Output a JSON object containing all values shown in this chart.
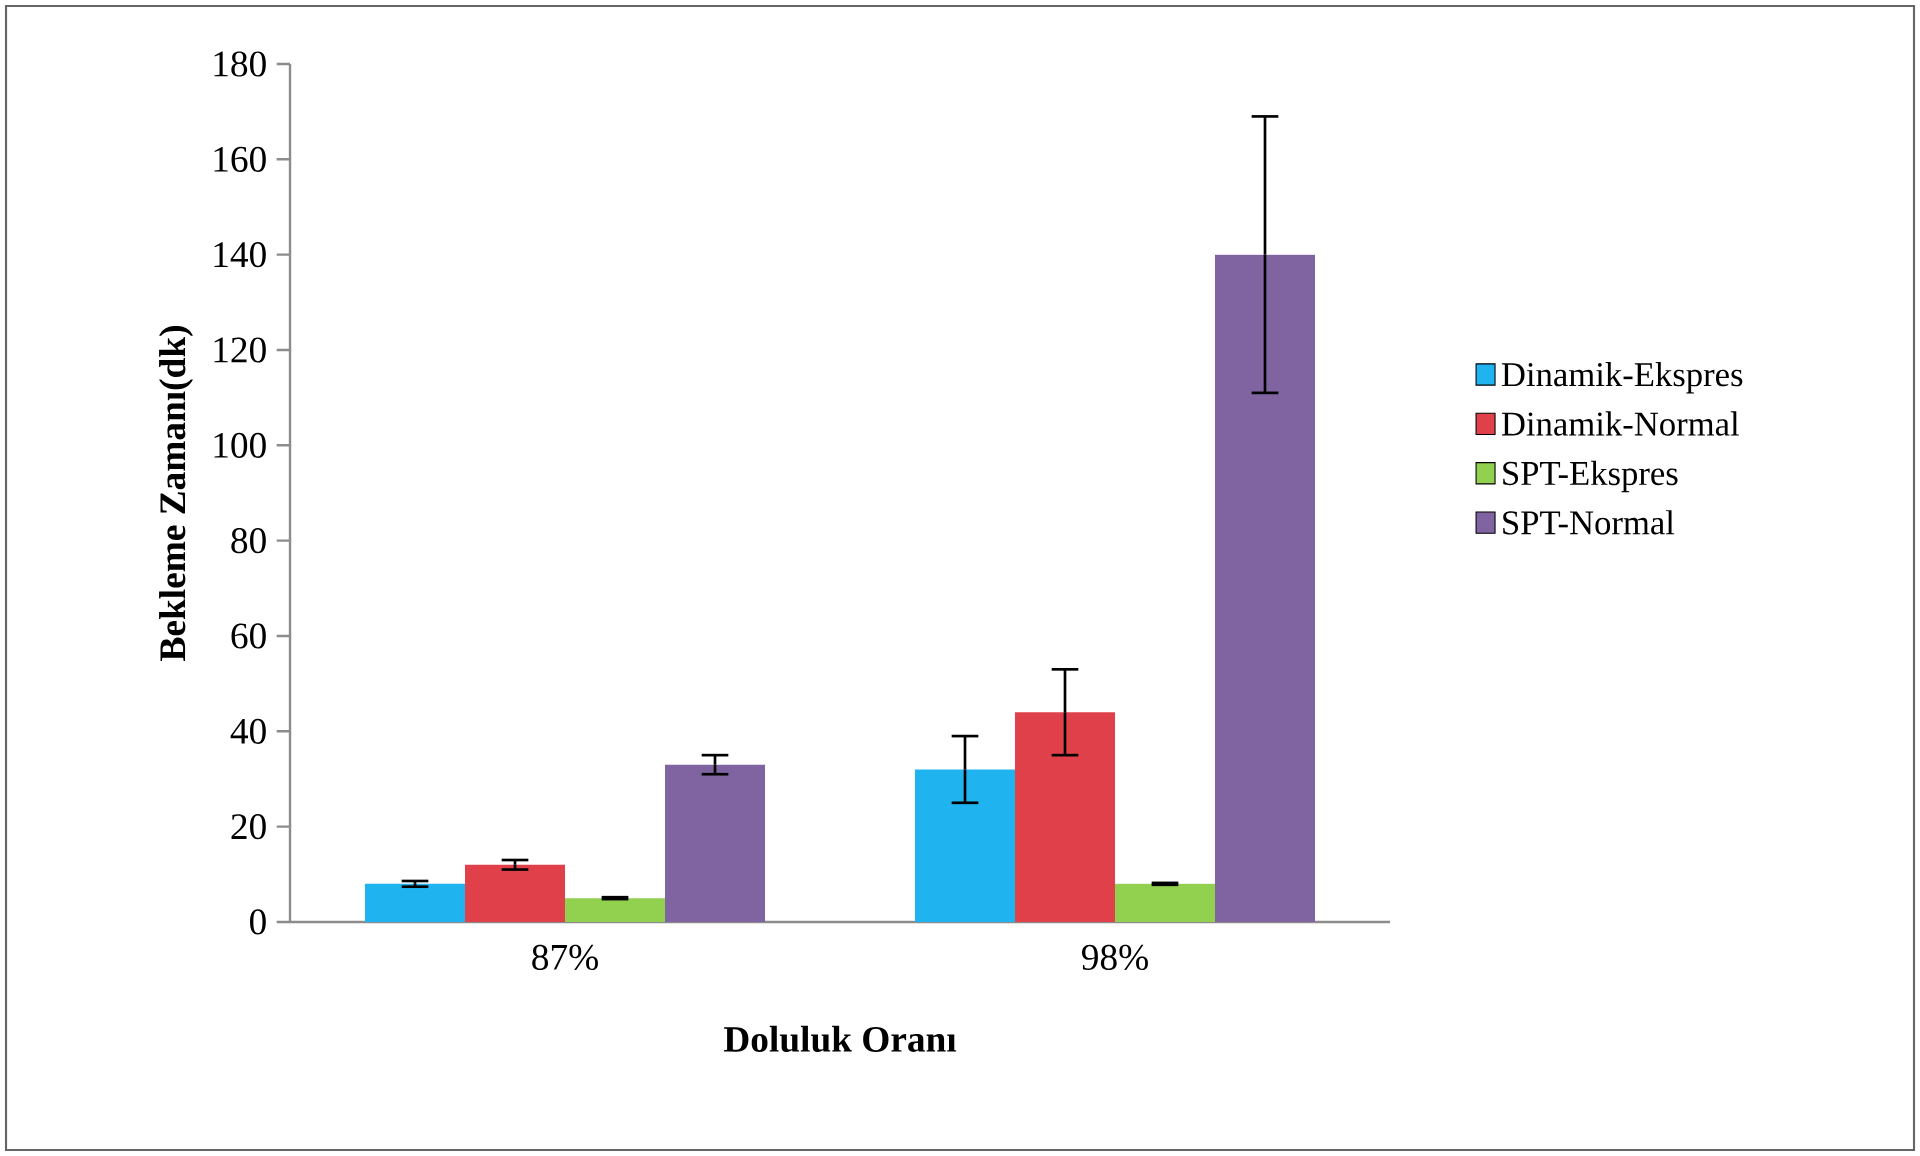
{
  "chart_data": {
    "type": "bar",
    "xlabel": "Doluluk Oranı",
    "ylabel": "Bekleme Zamanı(dk)",
    "categories": [
      "87%",
      "98%"
    ],
    "series": [
      {
        "name": "Dinamik-Ekspres",
        "color": "#1fb4ef",
        "values": [
          8,
          32
        ],
        "errors": [
          0.6,
          7
        ]
      },
      {
        "name": "Dinamik-Normal",
        "color": "#e0404a",
        "values": [
          12,
          44
        ],
        "errors": [
          1,
          9
        ]
      },
      {
        "name": "SPT-Ekspres",
        "color": "#92d050",
        "values": [
          5,
          8
        ],
        "errors": [
          0.2,
          0.2
        ]
      },
      {
        "name": "SPT-Normal",
        "color": "#8064a2",
        "values": [
          33,
          140
        ],
        "errors": [
          2,
          29
        ]
      }
    ],
    "ylim": [
      0,
      180
    ],
    "yticks": [
      0,
      20,
      40,
      60,
      80,
      100,
      120,
      140,
      160,
      180
    ],
    "grid": false,
    "legend": "right"
  }
}
